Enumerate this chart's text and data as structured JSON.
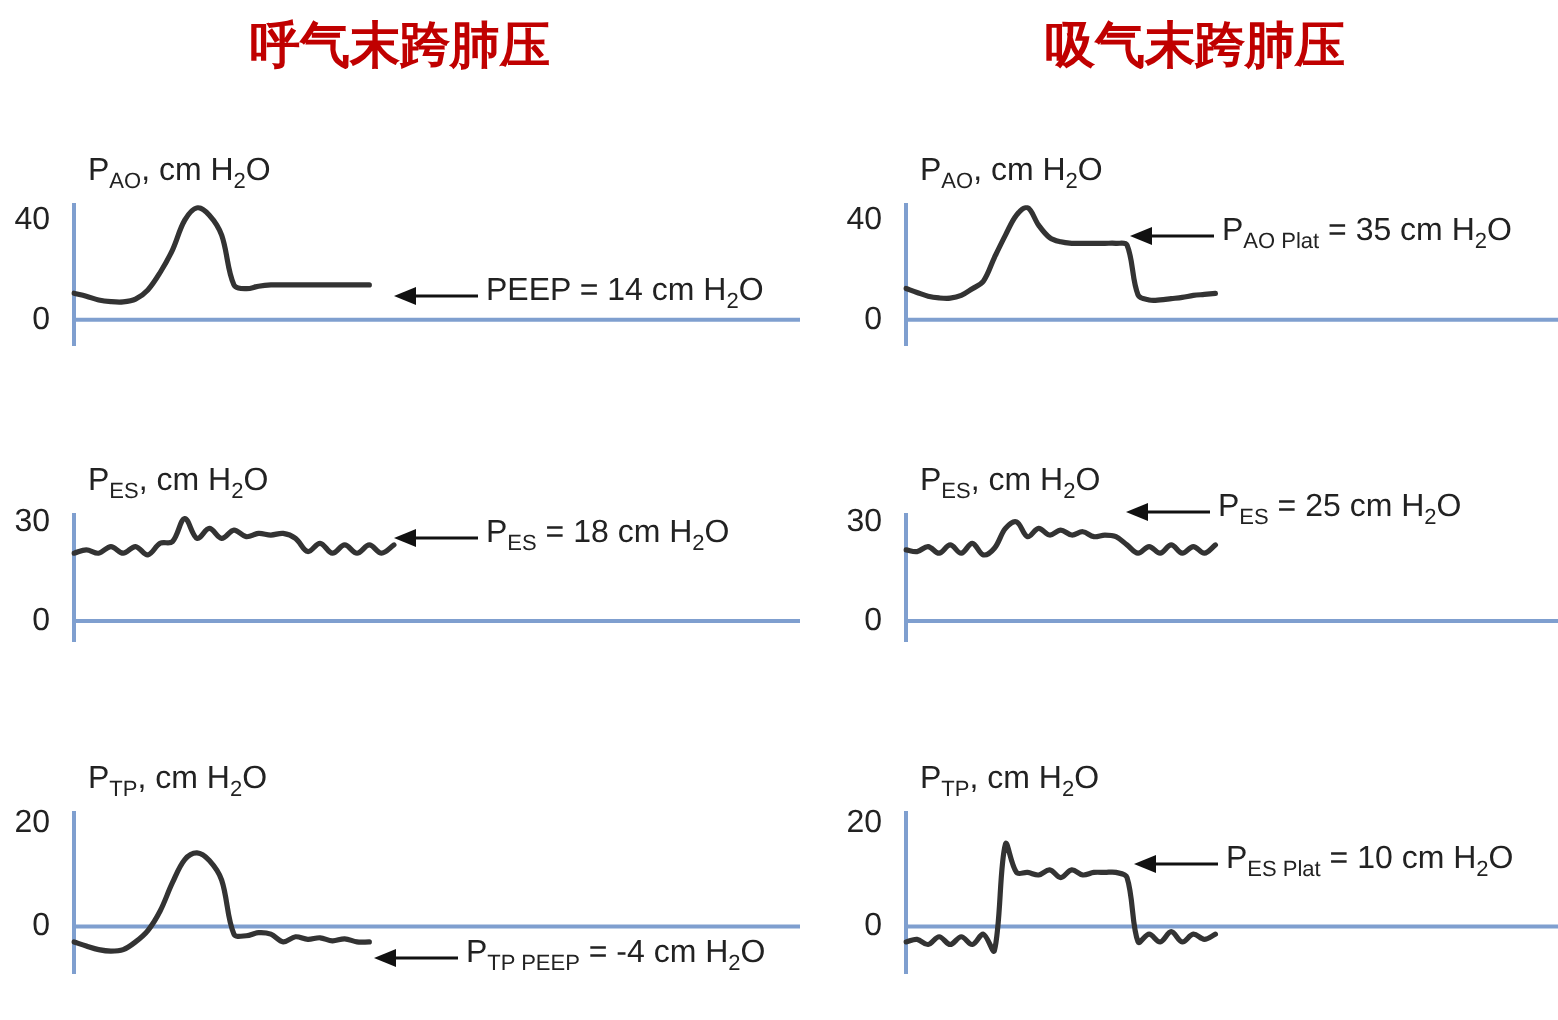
{
  "chart_data": [
    {
      "type": "line",
      "title": "呼气末跨肺压",
      "ylabel": "P$_{AO}$, cm H$_{2}$O",
      "color": "#333333",
      "ylim": [
        -10,
        46
      ],
      "yticks": [
        0,
        40
      ],
      "tick_labels": "y",
      "categories": [
        null,
        null,
        null,
        null,
        null,
        null,
        null,
        null,
        null,
        null,
        null,
        null,
        null,
        null,
        null,
        null,
        null,
        null,
        null,
        null,
        null,
        null,
        null,
        null,
        null,
        null,
        null,
        null,
        null,
        null,
        null,
        null,
        null,
        null,
        null,
        null,
        null,
        null,
        null,
        null,
        null,
        null,
        null,
        null,
        null,
        null,
        null,
        null,
        null,
        null,
        null,
        null,
        null,
        null,
        null,
        null,
        null,
        null,
        null,
        null
      ],
      "values": [
        10.7,
        9.5,
        8,
        7.3,
        7.2,
        8.3,
        12,
        19,
        28,
        40,
        45,
        42,
        34,
        14,
        12.5,
        13.5,
        14,
        14,
        14,
        14,
        14,
        14,
        14,
        14,
        14,
        null,
        null,
        null,
        null,
        null,
        null,
        null,
        null,
        null,
        null,
        null,
        null,
        null,
        null,
        null,
        null,
        null,
        null,
        null,
        null,
        null,
        null,
        null,
        null,
        null,
        null,
        null,
        null,
        null,
        null,
        null,
        null,
        null,
        null,
        null
      ],
      "ref_lines": [
        {
          "axis": "y",
          "value": 0,
          "color": "#7f9fcf"
        }
      ],
      "annotations": [
        "PEEP = 14 cm H$_{2}$O"
      ]
    },
    {
      "type": "line",
      "title": "吸气末跨肺压",
      "ylabel": "P$_{AO}$, cm H$_{2}$O",
      "color": "#333333",
      "ylim": [
        -10,
        46
      ],
      "yticks": [
        0,
        40
      ],
      "tick_labels": "y",
      "categories": [
        null,
        null,
        null,
        null,
        null,
        null,
        null,
        null,
        null,
        null,
        null,
        null,
        null,
        null,
        null,
        null,
        null,
        null,
        null,
        null,
        null,
        null,
        null,
        null,
        null,
        null,
        null,
        null,
        null,
        null,
        null,
        null,
        null,
        null,
        null,
        null,
        null,
        null,
        null,
        null,
        null,
        null,
        null,
        null,
        null,
        null,
        null,
        null,
        null,
        null,
        null,
        null,
        null,
        null,
        null,
        null,
        null,
        null,
        null,
        null
      ],
      "values": [
        12.6,
        11,
        9.5,
        8.8,
        8.7,
        9.8,
        12.5,
        15.5,
        25,
        34,
        42,
        45,
        38,
        33,
        31.3,
        30.7,
        30.7,
        30.7,
        30.7,
        30.7,
        30,
        10,
        8,
        8,
        8.5,
        9,
        9.8,
        10.2,
        10.6,
        null,
        null,
        null,
        null,
        null,
        null,
        null,
        null,
        null,
        null,
        null,
        null,
        null,
        null,
        null,
        null,
        null,
        null,
        null,
        null,
        null,
        null,
        null,
        null,
        null,
        null,
        null,
        null,
        null,
        null,
        null
      ],
      "ref_lines": [
        {
          "axis": "y",
          "value": 0,
          "color": "#7f9fcf"
        }
      ],
      "annotations": [
        "P$_{AO Plat}$ = 35 cm H$_{2}$O"
      ]
    },
    {
      "type": "line",
      "ylabel": "P$_{ES}$, cm H$_{2}$O",
      "color": "#333333",
      "ylim": [
        -6,
        32
      ],
      "yticks": [
        0,
        30
      ],
      "tick_labels": "y",
      "categories": [
        null,
        null,
        null,
        null,
        null,
        null,
        null,
        null,
        null,
        null,
        null,
        null,
        null,
        null,
        null,
        null,
        null,
        null,
        null,
        null,
        null,
        null,
        null,
        null,
        null,
        null,
        null,
        null,
        null,
        null,
        null,
        null,
        null,
        null,
        null,
        null,
        null,
        null,
        null,
        null,
        null,
        null,
        null,
        null,
        null,
        null,
        null,
        null,
        null,
        null,
        null,
        null,
        null,
        null,
        null,
        null,
        null,
        null,
        null,
        null
      ],
      "values": [
        20.5,
        21.5,
        20.5,
        22.5,
        20.5,
        22.5,
        20,
        23.5,
        24,
        31,
        25,
        28,
        25,
        27.5,
        25.5,
        26.5,
        26,
        26.5,
        25,
        21,
        23.5,
        20.5,
        23,
        20.5,
        23,
        20.5,
        23,
        null,
        null,
        null,
        null,
        null,
        null,
        null,
        null,
        null,
        null,
        null,
        null,
        null,
        null,
        null,
        null,
        null,
        null,
        null,
        null,
        null,
        null,
        null,
        null,
        null,
        null,
        null,
        null,
        null,
        null,
        null,
        null,
        null
      ],
      "ref_lines": [
        {
          "axis": "y",
          "value": 0,
          "color": "#7f9fcf"
        }
      ],
      "annotations": [
        "P$_{ES}$ = 18 cm H$_{2}$O"
      ]
    },
    {
      "type": "line",
      "ylabel": "P$_{ES}$, cm H$_{2}$O",
      "color": "#333333",
      "ylim": [
        -6,
        32
      ],
      "yticks": [
        0,
        30
      ],
      "tick_labels": "y",
      "categories": [
        null,
        null,
        null,
        null,
        null,
        null,
        null,
        null,
        null,
        null,
        null,
        null,
        null,
        null,
        null,
        null,
        null,
        null,
        null,
        null,
        null,
        null,
        null,
        null,
        null,
        null,
        null,
        null,
        null,
        null,
        null,
        null,
        null,
        null,
        null,
        null,
        null,
        null,
        null,
        null,
        null,
        null,
        null,
        null,
        null,
        null,
        null,
        null,
        null,
        null,
        null,
        null,
        null,
        null,
        null,
        null,
        null,
        null,
        null,
        null
      ],
      "values": [
        21.5,
        21,
        22.5,
        20.5,
        23,
        20.5,
        23.5,
        20,
        22,
        28,
        30,
        25.5,
        28,
        26,
        27.5,
        26,
        27,
        25.5,
        26,
        25.5,
        23,
        20.5,
        22.5,
        20.5,
        23,
        20.5,
        22.5,
        20.5,
        23,
        null,
        null,
        null,
        null,
        null,
        null,
        null,
        null,
        null,
        null,
        null,
        null,
        null,
        null,
        null,
        null,
        null,
        null,
        null,
        null,
        null,
        null,
        null,
        null,
        null,
        null,
        null,
        null,
        null,
        null,
        null
      ],
      "ref_lines": [
        {
          "axis": "y",
          "value": 0,
          "color": "#7f9fcf"
        }
      ],
      "annotations": [
        "P$_{ES}$ = 25 cm H$_{2}$O"
      ]
    },
    {
      "type": "line",
      "ylabel": "P$_{TP}$, cm H$_{2}$O",
      "color": "#333333",
      "ylim": [
        -9,
        22
      ],
      "yticks": [
        0,
        20
      ],
      "tick_labels": "y",
      "categories": [
        null,
        null,
        null,
        null,
        null,
        null,
        null,
        null,
        null,
        null,
        null,
        null,
        null,
        null,
        null,
        null,
        null,
        null,
        null,
        null,
        null,
        null,
        null,
        null,
        null,
        null,
        null,
        null,
        null,
        null,
        null,
        null,
        null,
        null,
        null,
        null,
        null,
        null,
        null,
        null,
        null,
        null,
        null,
        null,
        null,
        null,
        null,
        null,
        null,
        null,
        null,
        null,
        null,
        null,
        null,
        null,
        null,
        null,
        null,
        null
      ],
      "values": [
        -3,
        -3.8,
        -4.5,
        -4.8,
        -4.5,
        -3,
        -0.8,
        3,
        8.5,
        13,
        14.3,
        12.8,
        9,
        -1.5,
        -1.8,
        -1.2,
        -1.5,
        -3,
        -2,
        -2.5,
        -2.2,
        -2.8,
        -2.4,
        -3,
        -3,
        null,
        null,
        null,
        null,
        null,
        null,
        null,
        null,
        null,
        null,
        null,
        null,
        null,
        null,
        null,
        null,
        null,
        null,
        null,
        null,
        null,
        null,
        null,
        null,
        null,
        null,
        null,
        null,
        null,
        null,
        null,
        null,
        null,
        null,
        null
      ],
      "ref_lines": [
        {
          "axis": "y",
          "value": 0,
          "color": "#7f9fcf"
        }
      ],
      "annotations": [
        "P$_{TP PEEP}$ = -4 cm H$_{2}$O"
      ]
    },
    {
      "type": "line",
      "ylabel": "P$_{TP}$, cm H$_{2}$O",
      "color": "#333333",
      "ylim": [
        -9,
        22
      ],
      "yticks": [
        0,
        20
      ],
      "tick_labels": "y",
      "categories": [
        null,
        null,
        null,
        null,
        null,
        null,
        null,
        null,
        null,
        null,
        null,
        null,
        null,
        null,
        null,
        null,
        null,
        null,
        null,
        null,
        null,
        null,
        null,
        null,
        null,
        null,
        null,
        null,
        null,
        null,
        null,
        null,
        null,
        null,
        null,
        null,
        null,
        null,
        null,
        null,
        null,
        null,
        null,
        null,
        null,
        null,
        null,
        null,
        null,
        null,
        null,
        null,
        null,
        null,
        null,
        null,
        null,
        null,
        null,
        null
      ],
      "values": [
        -3,
        -2.5,
        -3.5,
        -2,
        -3.5,
        -2,
        -3.5,
        -1.5,
        -4.7,
        16,
        10.5,
        10.5,
        10,
        11,
        9.5,
        11,
        10,
        10.5,
        10.5,
        10.5,
        9.5,
        -3,
        -1.5,
        -3,
        -1,
        -3,
        -1.5,
        -2.5,
        -1.5,
        null,
        null,
        null,
        null,
        null,
        null,
        null,
        null,
        null,
        null,
        null,
        null,
        null,
        null,
        null,
        null,
        null,
        null,
        null,
        null,
        null,
        null,
        null,
        null,
        null,
        null,
        null,
        null,
        null,
        null,
        null
      ],
      "ref_lines": [
        {
          "axis": "y",
          "value": 0,
          "color": "#7f9fcf"
        }
      ],
      "annotations": [
        "P$_{ES Plat}$ = 10 cm H$_{2}$O"
      ]
    }
  ]
}
